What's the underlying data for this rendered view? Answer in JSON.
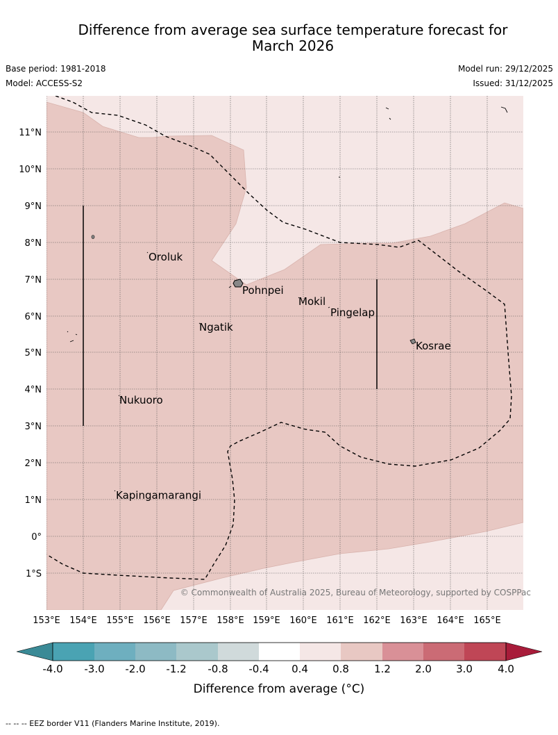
{
  "title_line1": "Difference from average sea surface temperature forecast for",
  "title_line2": "March 2026",
  "base_period": "Base period: 1981-2018",
  "model": "Model: ACCESS-S2",
  "model_run": "Model run: 29/12/2025",
  "issued": "Issued: 31/12/2025",
  "lat_labels": [
    "11°N",
    "10°N",
    "9°N",
    "8°N",
    "7°N",
    "6°N",
    "5°N",
    "4°N",
    "3°N",
    "2°N",
    "1°N",
    "0°",
    "1°S"
  ],
  "lon_labels": [
    "153°E",
    "154°E",
    "155°E",
    "156°E",
    "157°E",
    "158°E",
    "159°E",
    "160°E",
    "161°E",
    "162°E",
    "163°E",
    "164°E",
    "165°E"
  ],
  "places": {
    "oroluk": "Oroluk",
    "pohnpei": "Pohnpei",
    "mokil": "Mokil",
    "pingelap": "Pingelap",
    "ngatik": "Ngatik",
    "kosrae": "Kosrae",
    "nukuoro": "Nukuoro",
    "kapingamarangi": "Kapingamarangi"
  },
  "copyright": "© Commonwealth of Australia 2025, Bureau of Meteorology, supported by COSPPac",
  "colorbar": {
    "ticks": [
      "-4.0",
      "-3.0",
      "-2.0",
      "-1.2",
      "-0.8",
      "-0.4",
      "0.4",
      "0.8",
      "1.2",
      "2.0",
      "3.0",
      "4.0"
    ],
    "colors": [
      "#3a8a96",
      "#4aa3b3",
      "#6eafbf",
      "#8dbac4",
      "#aac8cc",
      "#d0dadb",
      "#ffffff",
      "#f5e7e6",
      "#e8c8c3",
      "#d99097",
      "#cb6b75",
      "#bf4656",
      "#a81c3a"
    ],
    "label": "Difference from average (",
    "label_unit": "°C)"
  },
  "legend_footer": "--  --  -- EEZ border V11 (Flanders Marine Institute, 2019).",
  "fill_colors": {
    "light": "#f5e7e6",
    "medium": "#e8c8c3"
  }
}
